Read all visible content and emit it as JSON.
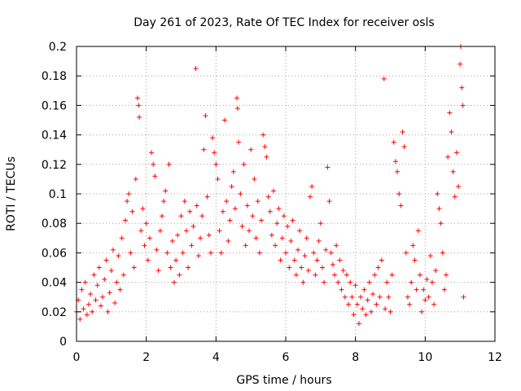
{
  "chart_data": {
    "type": "scatter",
    "title": "Day 261 of 2023, Rate Of TEC Index for receiver osls",
    "xlabel": "GPS time / hours",
    "ylabel": "ROTI / TECUs",
    "xlim": [
      0,
      12
    ],
    "ylim": [
      0,
      0.2
    ],
    "x_ticks": [
      0,
      2,
      4,
      6,
      8,
      10,
      12
    ],
    "x_tick_labels": [
      "0",
      "2",
      "4",
      "6",
      "8",
      "10",
      "12"
    ],
    "y_ticks": [
      0,
      0.02,
      0.04,
      0.06,
      0.08,
      0.1,
      0.12,
      0.14,
      0.16,
      0.18,
      0.2
    ],
    "y_tick_labels": [
      "0",
      "0.02",
      "0.04",
      "0.06",
      "0.08",
      "0.1",
      "0.12",
      "0.14",
      "0.16",
      "0.18",
      "0.2"
    ],
    "grid": true,
    "marker": "+",
    "marker_color": "#ff0000",
    "series": [
      {
        "name": "ROTI",
        "points": [
          [
            0.0,
            0.02
          ],
          [
            0.05,
            0.028
          ],
          [
            0.1,
            0.015
          ],
          [
            0.15,
            0.035
          ],
          [
            0.2,
            0.022
          ],
          [
            0.25,
            0.04
          ],
          [
            0.3,
            0.018
          ],
          [
            0.35,
            0.025
          ],
          [
            0.4,
            0.032
          ],
          [
            0.45,
            0.02
          ],
          [
            0.5,
            0.045
          ],
          [
            0.55,
            0.028
          ],
          [
            0.6,
            0.038
          ],
          [
            0.65,
            0.05
          ],
          [
            0.7,
            0.024
          ],
          [
            0.75,
            0.03
          ],
          [
            0.8,
            0.042
          ],
          [
            0.85,
            0.055
          ],
          [
            0.9,
            0.02
          ],
          [
            0.95,
            0.033
          ],
          [
            1.0,
            0.048
          ],
          [
            1.05,
            0.062
          ],
          [
            1.1,
            0.026
          ],
          [
            1.15,
            0.04
          ],
          [
            1.2,
            0.058
          ],
          [
            1.25,
            0.035
          ],
          [
            1.3,
            0.07
          ],
          [
            1.35,
            0.045
          ],
          [
            1.4,
            0.082
          ],
          [
            1.45,
            0.095
          ],
          [
            1.5,
            0.1
          ],
          [
            1.55,
            0.06
          ],
          [
            1.6,
            0.088
          ],
          [
            1.65,
            0.05
          ],
          [
            1.7,
            0.11
          ],
          [
            1.75,
            0.165
          ],
          [
            1.78,
            0.16
          ],
          [
            1.8,
            0.152
          ],
          [
            1.85,
            0.075
          ],
          [
            1.9,
            0.09
          ],
          [
            1.95,
            0.065
          ],
          [
            2.0,
            0.08
          ],
          [
            2.05,
            0.055
          ],
          [
            2.1,
            0.07
          ],
          [
            2.15,
            0.128
          ],
          [
            2.2,
            0.12
          ],
          [
            2.25,
            0.112
          ],
          [
            2.3,
            0.062
          ],
          [
            2.35,
            0.048
          ],
          [
            2.4,
            0.075
          ],
          [
            2.45,
            0.085
          ],
          [
            2.5,
            0.095
          ],
          [
            2.55,
            0.102
          ],
          [
            2.6,
            0.06
          ],
          [
            2.65,
            0.12
          ],
          [
            2.7,
            0.05
          ],
          [
            2.75,
            0.068
          ],
          [
            2.8,
            0.04
          ],
          [
            2.85,
            0.055
          ],
          [
            2.9,
            0.072
          ],
          [
            2.95,
            0.045
          ],
          [
            3.0,
            0.085
          ],
          [
            3.05,
            0.06
          ],
          [
            3.1,
            0.095
          ],
          [
            3.15,
            0.075
          ],
          [
            3.2,
            0.05
          ],
          [
            3.25,
            0.088
          ],
          [
            3.3,
            0.065
          ],
          [
            3.35,
            0.078
          ],
          [
            3.42,
            0.185
          ],
          [
            3.45,
            0.092
          ],
          [
            3.5,
            0.058
          ],
          [
            3.55,
            0.07
          ],
          [
            3.6,
            0.085
          ],
          [
            3.65,
            0.13
          ],
          [
            3.7,
            0.153
          ],
          [
            3.75,
            0.098
          ],
          [
            3.8,
            0.072
          ],
          [
            3.85,
            0.06
          ],
          [
            3.9,
            0.138
          ],
          [
            3.95,
            0.128
          ],
          [
            4.0,
            0.12
          ],
          [
            4.05,
            0.11
          ],
          [
            4.1,
            0.075
          ],
          [
            4.15,
            0.06
          ],
          [
            4.2,
            0.088
          ],
          [
            4.25,
            0.15
          ],
          [
            4.3,
            0.095
          ],
          [
            4.35,
            0.068
          ],
          [
            4.4,
            0.082
          ],
          [
            4.45,
            0.105
          ],
          [
            4.5,
            0.115
          ],
          [
            4.55,
            0.09
          ],
          [
            4.6,
            0.165
          ],
          [
            4.62,
            0.158
          ],
          [
            4.65,
            0.135
          ],
          [
            4.7,
            0.1
          ],
          [
            4.75,
            0.078
          ],
          [
            4.8,
            0.12
          ],
          [
            4.85,
            0.065
          ],
          [
            4.9,
            0.092
          ],
          [
            4.95,
            0.075
          ],
          [
            5.0,
            0.13
          ],
          [
            5.05,
            0.085
          ],
          [
            5.1,
            0.11
          ],
          [
            5.15,
            0.07
          ],
          [
            5.2,
            0.095
          ],
          [
            5.25,
            0.06
          ],
          [
            5.3,
            0.082
          ],
          [
            5.35,
            0.14
          ],
          [
            5.4,
            0.132
          ],
          [
            5.45,
            0.125
          ],
          [
            5.5,
            0.098
          ],
          [
            5.55,
            0.088
          ],
          [
            5.6,
            0.072
          ],
          [
            5.65,
            0.102
          ],
          [
            5.7,
            0.065
          ],
          [
            5.75,
            0.08
          ],
          [
            5.8,
            0.09
          ],
          [
            5.85,
            0.055
          ],
          [
            5.9,
            0.07
          ],
          [
            5.95,
            0.085
          ],
          [
            6.0,
            0.06
          ],
          [
            6.05,
            0.078
          ],
          [
            6.1,
            0.05
          ],
          [
            6.15,
            0.068
          ],
          [
            6.2,
            0.082
          ],
          [
            6.25,
            0.055
          ],
          [
            6.3,
            0.045
          ],
          [
            6.35,
            0.062
          ],
          [
            6.4,
            0.075
          ],
          [
            6.45,
            0.05
          ],
          [
            6.5,
            0.04
          ],
          [
            6.55,
            0.058
          ],
          [
            6.6,
            0.07
          ],
          [
            6.65,
            0.048
          ],
          [
            6.7,
            0.098
          ],
          [
            6.75,
            0.105
          ],
          [
            6.8,
            0.06
          ],
          [
            6.85,
            0.045
          ],
          [
            6.9,
            0.055
          ],
          [
            6.95,
            0.068
          ],
          [
            7.0,
            0.08
          ],
          [
            7.05,
            0.05
          ],
          [
            7.1,
            0.04
          ],
          [
            7.15,
            0.062
          ],
          [
            7.2,
            0.118
          ],
          [
            7.25,
            0.095
          ],
          [
            7.3,
            0.06
          ],
          [
            7.35,
            0.052
          ],
          [
            7.4,
            0.045
          ],
          [
            7.45,
            0.065
          ],
          [
            7.5,
            0.04
          ],
          [
            7.55,
            0.055
          ],
          [
            7.6,
            0.035
          ],
          [
            7.65,
            0.048
          ],
          [
            7.7,
            0.03
          ],
          [
            7.75,
            0.045
          ],
          [
            7.8,
            0.025
          ],
          [
            7.85,
            0.04
          ],
          [
            7.9,
            0.03
          ],
          [
            7.95,
            0.018
          ],
          [
            8.0,
            0.038
          ],
          [
            8.05,
            0.025
          ],
          [
            8.1,
            0.012
          ],
          [
            8.15,
            0.03
          ],
          [
            8.2,
            0.022
          ],
          [
            8.25,
            0.035
          ],
          [
            8.3,
            0.018
          ],
          [
            8.35,
            0.028
          ],
          [
            8.4,
            0.04
          ],
          [
            8.45,
            0.02
          ],
          [
            8.5,
            0.032
          ],
          [
            8.55,
            0.045
          ],
          [
            8.6,
            0.025
          ],
          [
            8.65,
            0.05
          ],
          [
            8.7,
            0.03
          ],
          [
            8.75,
            0.055
          ],
          [
            8.82,
            0.178
          ],
          [
            8.85,
            0.022
          ],
          [
            8.9,
            0.04
          ],
          [
            8.95,
            0.03
          ],
          [
            9.0,
            0.02
          ],
          [
            9.05,
            0.045
          ],
          [
            9.1,
            0.135
          ],
          [
            9.15,
            0.122
          ],
          [
            9.2,
            0.115
          ],
          [
            9.25,
            0.1
          ],
          [
            9.3,
            0.092
          ],
          [
            9.35,
            0.142
          ],
          [
            9.4,
            0.132
          ],
          [
            9.45,
            0.06
          ],
          [
            9.5,
            0.03
          ],
          [
            9.55,
            0.025
          ],
          [
            9.6,
            0.04
          ],
          [
            9.65,
            0.065
          ],
          [
            9.7,
            0.055
          ],
          [
            9.75,
            0.035
          ],
          [
            9.8,
            0.075
          ],
          [
            9.85,
            0.045
          ],
          [
            9.9,
            0.02
          ],
          [
            9.95,
            0.035
          ],
          [
            10.0,
            0.028
          ],
          [
            10.05,
            0.042
          ],
          [
            10.1,
            0.03
          ],
          [
            10.15,
            0.058
          ],
          [
            10.2,
            0.04
          ],
          [
            10.25,
            0.025
          ],
          [
            10.3,
            0.048
          ],
          [
            10.35,
            0.1
          ],
          [
            10.4,
            0.09
          ],
          [
            10.45,
            0.08
          ],
          [
            10.5,
            0.06
          ],
          [
            10.55,
            0.035
          ],
          [
            10.6,
            0.045
          ],
          [
            10.65,
            0.125
          ],
          [
            10.7,
            0.155
          ],
          [
            10.75,
            0.142
          ],
          [
            10.8,
            0.115
          ],
          [
            10.85,
            0.098
          ],
          [
            10.9,
            0.128
          ],
          [
            10.95,
            0.105
          ],
          [
            11.0,
            0.188
          ],
          [
            11.02,
            0.2
          ],
          [
            11.05,
            0.172
          ],
          [
            11.08,
            0.16
          ],
          [
            11.1,
            0.03
          ]
        ]
      }
    ]
  }
}
